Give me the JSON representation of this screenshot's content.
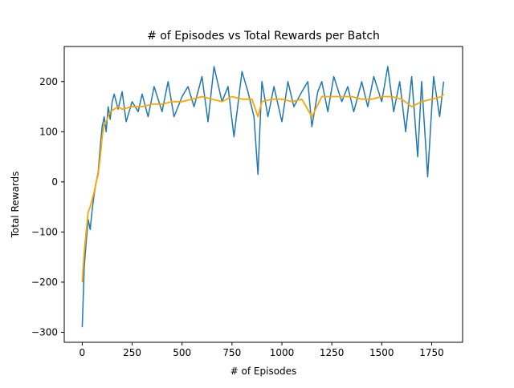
{
  "chart_data": {
    "type": "line",
    "title": "# of Episodes vs Total Rewards per Batch",
    "xlabel": "# of Episodes",
    "ylabel": "Total Rewards",
    "xlim": [
      -90,
      1905
    ],
    "ylim": [
      -320,
      270
    ],
    "xticks": [
      0,
      250,
      500,
      750,
      1000,
      1250,
      1500,
      1750
    ],
    "yticks": [
      -300,
      -200,
      -100,
      0,
      100,
      200
    ],
    "grid": false,
    "legend": "none",
    "colors": {
      "raw": "#1f77b4",
      "smoothed": "#ffa500"
    },
    "series": [
      {
        "x": [
          0,
          10,
          20,
          30,
          40,
          50,
          60,
          70,
          80,
          90,
          100,
          110,
          120,
          130,
          140,
          150,
          160,
          180,
          200,
          220,
          250,
          280,
          300,
          330,
          360,
          400,
          430,
          460,
          500,
          530,
          560,
          600,
          630,
          660,
          700,
          730,
          760,
          800,
          830,
          860,
          880,
          900,
          930,
          960,
          1000,
          1030,
          1060,
          1100,
          1130,
          1150,
          1180,
          1200,
          1230,
          1260,
          1300,
          1330,
          1360,
          1400,
          1430,
          1460,
          1500,
          1530,
          1560,
          1590,
          1620,
          1650,
          1680,
          1700,
          1730,
          1760,
          1790,
          1810
        ],
        "values": [
          -290,
          -170,
          -120,
          -75,
          -95,
          -55,
          -25,
          0,
          20,
          70,
          110,
          130,
          100,
          150,
          125,
          160,
          175,
          145,
          180,
          120,
          160,
          140,
          175,
          130,
          190,
          140,
          200,
          130,
          170,
          190,
          150,
          210,
          120,
          230,
          160,
          190,
          90,
          220,
          180,
          130,
          15,
          200,
          130,
          190,
          120,
          200,
          150,
          180,
          200,
          110,
          180,
          200,
          140,
          210,
          160,
          190,
          140,
          200,
          150,
          210,
          160,
          230,
          140,
          200,
          100,
          210,
          50,
          200,
          10,
          210,
          130,
          200
        ]
      },
      {
        "x": [
          0,
          10,
          20,
          30,
          40,
          50,
          60,
          70,
          80,
          90,
          100,
          110,
          120,
          140,
          160,
          180,
          200,
          250,
          300,
          350,
          400,
          450,
          500,
          550,
          600,
          650,
          700,
          750,
          800,
          850,
          880,
          900,
          950,
          1000,
          1050,
          1100,
          1150,
          1200,
          1250,
          1300,
          1350,
          1400,
          1450,
          1500,
          1550,
          1600,
          1650,
          1700,
          1750,
          1800,
          1810
        ],
        "values": [
          -200,
          -140,
          -100,
          -60,
          -50,
          -35,
          -20,
          0,
          15,
          50,
          90,
          115,
          120,
          140,
          145,
          150,
          145,
          150,
          150,
          155,
          155,
          160,
          160,
          165,
          170,
          165,
          160,
          170,
          165,
          165,
          130,
          160,
          165,
          165,
          160,
          165,
          130,
          170,
          170,
          170,
          170,
          165,
          165,
          170,
          170,
          165,
          150,
          160,
          165,
          170,
          175
        ]
      }
    ]
  }
}
